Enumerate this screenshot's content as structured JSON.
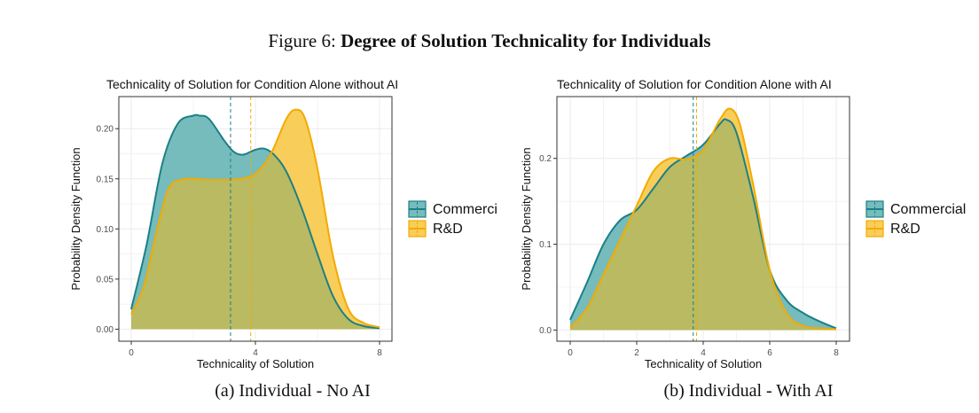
{
  "figure": {
    "label": "Figure 6:",
    "heading": "Degree of Solution Technicality for Individuals"
  },
  "colors": {
    "commercial_line": "#1d7f86",
    "commercial_fill": "#76bcbd",
    "rd_line": "#f2ab00",
    "rd_fill": "#f9cd5a",
    "overlap_fill": "#b9ba62",
    "grid": "#ebebeb",
    "panel_border": "#333333"
  },
  "chart_data": [
    {
      "type": "area",
      "title": "Technicality of Solution for Condition Alone without AI",
      "caption": "(a) Individual - No AI",
      "xlabel": "Technicality of Solution",
      "ylabel": "Probability Density Function",
      "xlim": [
        -0.4,
        8.4
      ],
      "ylim": [
        -0.012,
        0.232
      ],
      "x_ticks": [
        0,
        4,
        8
      ],
      "y_ticks": [
        0.0,
        0.05,
        0.1,
        0.15,
        0.2
      ],
      "y_tick_labels": [
        "0.00",
        "0.05",
        "0.10",
        "0.15",
        "0.20"
      ],
      "grid": true,
      "legend": {
        "position": "right",
        "entries": [
          "Commercial",
          "R&D"
        ]
      },
      "series": [
        {
          "name": "Commercial",
          "x": [
            0,
            0.5,
            1,
            1.5,
            2,
            2.2,
            2.5,
            3,
            3.3,
            3.6,
            4,
            4.3,
            4.6,
            5,
            5.5,
            6,
            6.5,
            7,
            7.5,
            8
          ],
          "y": [
            0.02,
            0.085,
            0.165,
            0.205,
            0.213,
            0.213,
            0.21,
            0.188,
            0.177,
            0.174,
            0.179,
            0.18,
            0.174,
            0.157,
            0.12,
            0.075,
            0.033,
            0.01,
            0.003,
            0.001
          ],
          "mean": 3.2
        },
        {
          "name": "R&D",
          "x": [
            0,
            0.4,
            0.8,
            1.2,
            1.6,
            2,
            2.5,
            3,
            3.5,
            4,
            4.5,
            5,
            5.3,
            5.6,
            6,
            6.5,
            7,
            7.5,
            8
          ],
          "y": [
            0.015,
            0.042,
            0.095,
            0.14,
            0.149,
            0.15,
            0.149,
            0.149,
            0.15,
            0.155,
            0.175,
            0.21,
            0.219,
            0.21,
            0.16,
            0.073,
            0.02,
            0.006,
            0.002
          ],
          "mean": 3.85
        }
      ]
    },
    {
      "type": "area",
      "title": "Technicality of Solution for Condition Alone with AI",
      "caption": "(b) Individual - With AI",
      "xlabel": "Technicality of Solution",
      "ylabel": "Probability Density Function",
      "xlim": [
        -0.4,
        8.4
      ],
      "ylim": [
        -0.013,
        0.272
      ],
      "x_ticks": [
        0,
        2,
        4,
        6,
        8
      ],
      "y_ticks": [
        0.0,
        0.1,
        0.2
      ],
      "y_tick_labels": [
        "0.0",
        "0.1",
        "0.2"
      ],
      "grid": true,
      "legend": {
        "position": "right",
        "entries": [
          "Commercial",
          "R&D"
        ]
      },
      "series": [
        {
          "name": "Commercial",
          "x": [
            0,
            0.5,
            1,
            1.5,
            2,
            2.5,
            3,
            3.5,
            4,
            4.5,
            4.7,
            5,
            5.5,
            6,
            6.5,
            7,
            7.5,
            8
          ],
          "y": [
            0.012,
            0.055,
            0.1,
            0.128,
            0.14,
            0.165,
            0.19,
            0.203,
            0.216,
            0.24,
            0.245,
            0.23,
            0.155,
            0.07,
            0.035,
            0.02,
            0.01,
            0.002
          ],
          "mean": 3.7
        },
        {
          "name": "R&D",
          "x": [
            0,
            0.5,
            1,
            1.5,
            2,
            2.5,
            3,
            3.5,
            4,
            4.5,
            4.8,
            5.1,
            5.5,
            6,
            6.5,
            7,
            7.5,
            8
          ],
          "y": [
            0.003,
            0.025,
            0.065,
            0.105,
            0.145,
            0.185,
            0.2,
            0.199,
            0.21,
            0.245,
            0.258,
            0.24,
            0.17,
            0.07,
            0.02,
            0.005,
            0.002,
            0.001
          ],
          "mean": 3.8
        }
      ]
    }
  ]
}
